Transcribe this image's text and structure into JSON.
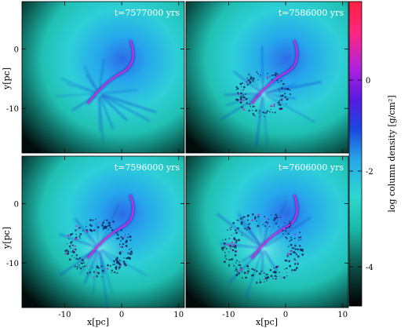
{
  "panels": [
    {
      "time_label": "t=7577000 yrs"
    },
    {
      "time_label": "t=7586000 yrs"
    },
    {
      "time_label": "t=7596000 yrs"
    },
    {
      "time_label": "t=7606000 yrs"
    }
  ],
  "axes": {
    "xlabel": "x[pc]",
    "ylabel": "y[pc]",
    "xticks": [
      "-10",
      "0",
      "10"
    ],
    "yticks": [
      "0",
      "-10"
    ]
  },
  "colorbar": {
    "label": "log column density [g/cm²]",
    "ticks": [
      "0",
      "-2",
      "-4"
    ],
    "colors": [
      "#000000",
      "#0b4a44",
      "#18b8a8",
      "#2ed8d0",
      "#28a8e8",
      "#1848e0",
      "#5a1ae0",
      "#b020e0",
      "#ff2880",
      "#ff2040"
    ]
  }
}
